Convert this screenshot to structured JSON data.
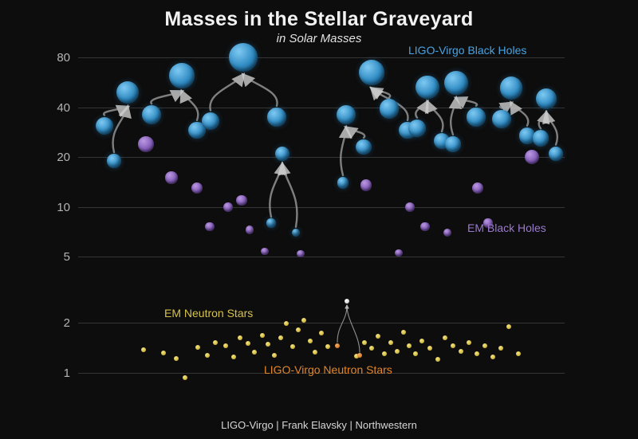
{
  "footer": {
    "text": "LIGO-Virgo | Frank Elavsky | Northwestern"
  },
  "chart_data": {
    "type": "scatter",
    "title": "Masses in the Stellar Graveyard",
    "subtitle": "in Solar Masses",
    "yaxis": {
      "scale": "log",
      "unit": "solar masses",
      "ticks": [
        80,
        40,
        20,
        10,
        5,
        2,
        1
      ],
      "ylim": [
        0.8,
        100
      ],
      "grid": true
    },
    "x_note": "x positions are arbitrary chart layout in pixels (no x scale)",
    "series": [
      {
        "key": "lv_bh",
        "name": "LIGO-Virgo Black Holes",
        "color": "#3f9bd8",
        "kind": "merger-events",
        "events": [
          {
            "parents": [
              [
                131,
                31
              ],
              [
                143,
                19
              ]
            ],
            "final": [
              160,
              49
            ]
          },
          {
            "parents": [
              [
                190,
                36
              ],
              [
                247,
                29
              ]
            ],
            "final": [
              228,
              62
            ]
          },
          {
            "parents": [
              [
                264,
                33
              ],
              [
                347,
                35
              ]
            ],
            "final": [
              305,
              80
            ]
          },
          {
            "parents": [
              [
                340,
                8
              ],
              [
                371,
                7
              ]
            ],
            "final": [
              354,
              21
            ]
          },
          {
            "parents": [
              [
                430,
                14
              ],
              [
                456,
                23
              ]
            ],
            "final": [
              434,
              36
            ]
          },
          {
            "parents": [
              [
                488,
                39
              ],
              [
                511,
                29
              ]
            ],
            "final": [
              466,
              65
            ]
          },
          {
            "parents": [
              [
                523,
                30
              ],
              [
                554,
                25
              ]
            ],
            "final": [
              536,
              53
            ]
          },
          {
            "parents": [
              [
                568,
                24
              ],
              [
                597,
                35
              ]
            ],
            "final": [
              572,
              56
            ]
          },
          {
            "parents": [
              [
                629,
                34
              ],
              [
                661,
                27
              ]
            ],
            "final": [
              641,
              52
            ]
          },
          {
            "parents": [
              [
                678,
                26
              ],
              [
                697,
                21
              ]
            ],
            "final": [
              685,
              45
            ]
          }
        ]
      },
      {
        "key": "em_bh",
        "name": "EM Black Holes",
        "color": "#9b77cd",
        "kind": "points",
        "points": [
          [
            183,
            24
          ],
          [
            215,
            15
          ],
          [
            247,
            13
          ],
          [
            263,
            7.6
          ],
          [
            286,
            10
          ],
          [
            303,
            11
          ],
          [
            313,
            7.3
          ],
          [
            332,
            5.4
          ],
          [
            377,
            5.2
          ],
          [
            459,
            13.5
          ],
          [
            500,
            5.3
          ],
          [
            514,
            10
          ],
          [
            533,
            7.6
          ],
          [
            561,
            7
          ],
          [
            599,
            13
          ],
          [
            612,
            8
          ],
          [
            667,
            20
          ]
        ]
      },
      {
        "key": "em_ns",
        "name": "EM Neutron Stars",
        "color": "#d6c24a",
        "kind": "points",
        "points": [
          [
            180,
            1.38
          ],
          [
            205,
            1.32
          ],
          [
            221,
            1.22
          ],
          [
            232,
            0.93
          ],
          [
            248,
            1.42
          ],
          [
            260,
            1.28
          ],
          [
            270,
            1.52
          ],
          [
            283,
            1.45
          ],
          [
            293,
            1.24
          ],
          [
            301,
            1.62
          ],
          [
            311,
            1.5
          ],
          [
            319,
            1.33
          ],
          [
            329,
            1.68
          ],
          [
            336,
            1.48
          ],
          [
            344,
            1.27
          ],
          [
            352,
            1.62
          ],
          [
            359,
            1.98
          ],
          [
            367,
            1.44
          ],
          [
            374,
            1.82
          ],
          [
            381,
            2.08
          ],
          [
            389,
            1.56
          ],
          [
            395,
            1.33
          ],
          [
            403,
            1.74
          ],
          [
            411,
            1.44
          ],
          [
            447,
            1.26
          ],
          [
            457,
            1.52
          ],
          [
            466,
            1.4
          ],
          [
            474,
            1.66
          ],
          [
            482,
            1.3
          ],
          [
            490,
            1.52
          ],
          [
            498,
            1.34
          ],
          [
            506,
            1.76
          ],
          [
            513,
            1.46
          ],
          [
            521,
            1.3
          ],
          [
            529,
            1.56
          ],
          [
            539,
            1.4
          ],
          [
            549,
            1.2
          ],
          [
            558,
            1.62
          ],
          [
            568,
            1.46
          ],
          [
            578,
            1.34
          ],
          [
            588,
            1.52
          ],
          [
            598,
            1.3
          ],
          [
            608,
            1.46
          ],
          [
            618,
            1.24
          ],
          [
            628,
            1.4
          ],
          [
            638,
            1.9
          ],
          [
            650,
            1.3
          ]
        ]
      },
      {
        "key": "lv_ns",
        "name": "LIGO-Virgo Neutron Stars",
        "color": "#dd8530",
        "kind": "merger-events",
        "events": [
          {
            "parents": [
              [
                423,
                1.46
              ],
              [
                451,
                1.27
              ]
            ],
            "remnant": [
              435,
              2.7
            ]
          }
        ]
      }
    ],
    "annotations": [
      {
        "text": "LIGO-Virgo Black Holes",
        "color": "#4aa3e0",
        "x": 512,
        "y": 55
      },
      {
        "text": "EM Black Holes",
        "color": "#9b79cc",
        "x": 586,
        "y": 278
      },
      {
        "text": "EM Neutron Stars",
        "color": "#d6c24a",
        "x": 206,
        "y": 385
      },
      {
        "text": "LIGO-Virgo Neutron Stars",
        "color": "#e0862e",
        "x": 331,
        "y": 456
      }
    ]
  }
}
